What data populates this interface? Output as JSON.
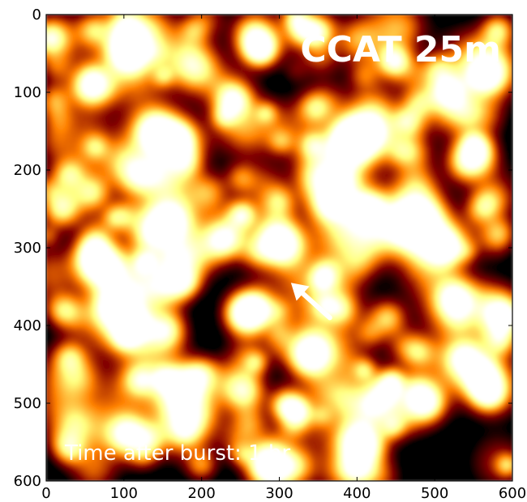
{
  "chart_data": {
    "type": "heatmap",
    "title": "CCAT 25m",
    "annotation": "Time after burst: 1 hr",
    "xlim": [
      0,
      600
    ],
    "ylim": [
      600,
      0
    ],
    "x_ticks": [
      0,
      100,
      200,
      300,
      400,
      500,
      600
    ],
    "y_ticks": [
      0,
      100,
      200,
      300,
      400,
      500,
      600
    ],
    "colormap": "afmhot",
    "arrow": {
      "tail": [
        365,
        390
      ],
      "head": [
        315,
        345
      ]
    },
    "sources": [
      [
        105,
        50,
        1.0
      ],
      [
        395,
        160,
        1.0
      ],
      [
        160,
        265,
        1.0
      ],
      [
        260,
        385,
        1.0
      ],
      [
        550,
        180,
        0.9
      ],
      [
        140,
        150,
        0.8
      ],
      [
        300,
        295,
        0.9
      ],
      [
        85,
        375,
        0.9
      ],
      [
        340,
        440,
        0.9
      ],
      [
        155,
        405,
        0.8
      ],
      [
        255,
        485,
        0.85
      ],
      [
        105,
        540,
        0.85
      ],
      [
        515,
        300,
        0.85
      ],
      [
        525,
        365,
        0.7
      ],
      [
        230,
        290,
        0.75
      ],
      [
        515,
        100,
        0.8
      ],
      [
        55,
        95,
        0.6
      ],
      [
        20,
        250,
        0.6
      ],
      [
        60,
        230,
        0.6
      ],
      [
        240,
        110,
        0.55
      ],
      [
        275,
        45,
        0.55
      ],
      [
        450,
        60,
        0.55
      ],
      [
        565,
        80,
        0.5
      ],
      [
        460,
        270,
        0.55
      ],
      [
        570,
        490,
        0.65
      ],
      [
        490,
        500,
        0.6
      ],
      [
        400,
        585,
        0.7
      ],
      [
        285,
        580,
        0.9
      ],
      [
        30,
        560,
        0.5
      ],
      [
        200,
        460,
        0.5
      ],
      [
        440,
        390,
        0.6
      ],
      [
        480,
        435,
        0.5
      ],
      [
        20,
        380,
        0.5
      ],
      [
        30,
        440,
        0.45
      ],
      [
        60,
        300,
        0.45
      ],
      [
        180,
        345,
        0.55
      ],
      [
        300,
        240,
        0.5
      ],
      [
        180,
        190,
        0.5
      ],
      [
        345,
        120,
        0.45
      ],
      [
        420,
        250,
        0.5
      ],
      [
        560,
        250,
        0.45
      ],
      [
        10,
        110,
        0.45
      ],
      [
        200,
        580,
        0.5
      ],
      [
        325,
        515,
        0.5
      ],
      [
        120,
        470,
        0.45
      ],
      [
        585,
        420,
        0.45
      ],
      [
        360,
        330,
        0.4
      ],
      [
        250,
        210,
        0.4
      ],
      [
        380,
        210,
        0.45
      ],
      [
        60,
        20,
        0.45
      ],
      [
        190,
        20,
        0.35
      ],
      [
        330,
        20,
        0.35
      ],
      [
        580,
        20,
        0.4
      ],
      [
        5,
        30,
        0.4
      ],
      [
        470,
        140,
        0.45
      ],
      [
        440,
        480,
        0.45
      ],
      [
        100,
        260,
        0.5
      ],
      [
        380,
        380,
        0.45
      ]
    ]
  }
}
